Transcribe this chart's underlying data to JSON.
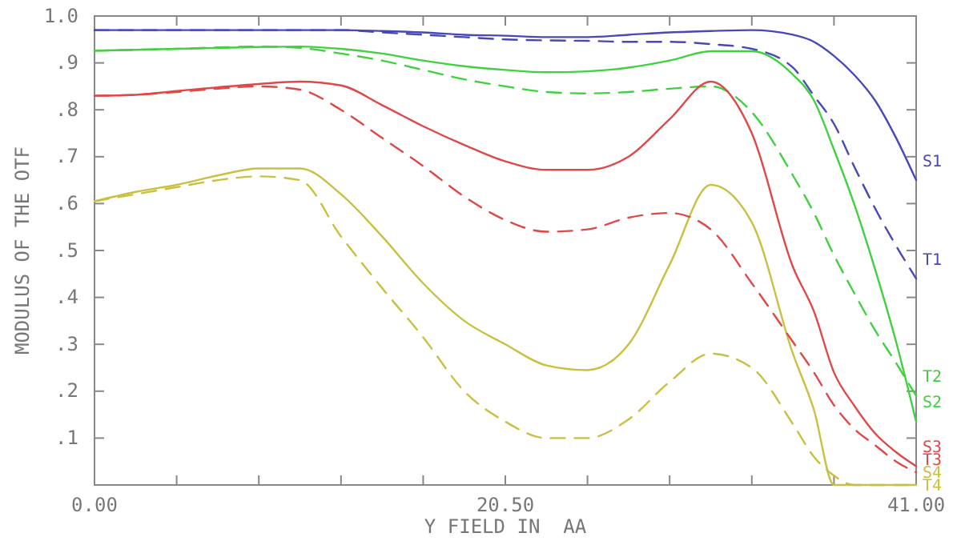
{
  "chart_data": {
    "type": "line",
    "xlabel": "Y FIELD IN  AA",
    "ylabel": "MODULUS OF THE OTF",
    "x": [
      0,
      2.05,
      4.1,
      6.15,
      8.2,
      10.25,
      12.3,
      14.35,
      16.4,
      18.45,
      20.5,
      22.55,
      24.6,
      26.65,
      28.7,
      30.75,
      32.8,
      34.85,
      35.9,
      36.9,
      37.9,
      38.95,
      40,
      41
    ],
    "xlim": [
      0,
      41
    ],
    "xticks": [
      {
        "value": 0,
        "label": "0.00"
      },
      {
        "value": 4.1,
        "label": null
      },
      {
        "value": 8.2,
        "label": null
      },
      {
        "value": 12.3,
        "label": null
      },
      {
        "value": 16.4,
        "label": null
      },
      {
        "value": 20.5,
        "label": "20.50"
      },
      {
        "value": 24.6,
        "label": null
      },
      {
        "value": 28.7,
        "label": null
      },
      {
        "value": 32.8,
        "label": null
      },
      {
        "value": 36.9,
        "label": null
      },
      {
        "value": 41,
        "label": "41.00"
      }
    ],
    "ylim": [
      0,
      1
    ],
    "yticks": [
      {
        "value": 0.1,
        "label": ".1"
      },
      {
        "value": 0.2,
        "label": ".2"
      },
      {
        "value": 0.3,
        "label": ".3"
      },
      {
        "value": 0.4,
        "label": ".4"
      },
      {
        "value": 0.5,
        "label": ".5"
      },
      {
        "value": 0.6,
        "label": ".6"
      },
      {
        "value": 0.7,
        "label": ".7"
      },
      {
        "value": 0.8,
        "label": ".8"
      },
      {
        "value": 0.9,
        "label": ".9"
      },
      {
        "value": 1,
        "label": "1.0"
      }
    ],
    "grid": false,
    "marker": "none",
    "series": [
      {
        "name": "S1",
        "color": "#4848b8",
        "line_style": "solid",
        "values": [
          0.97,
          0.97,
          0.97,
          0.97,
          0.97,
          0.97,
          0.97,
          0.968,
          0.965,
          0.96,
          0.958,
          0.955,
          0.955,
          0.96,
          0.965,
          0.968,
          0.97,
          0.96,
          0.945,
          0.915,
          0.875,
          0.82,
          0.74,
          0.65
        ]
      },
      {
        "name": "T1",
        "color": "#4848b8",
        "line_style": "dashed",
        "values": [
          0.97,
          0.97,
          0.97,
          0.97,
          0.97,
          0.97,
          0.97,
          0.965,
          0.96,
          0.955,
          0.95,
          0.948,
          0.947,
          0.945,
          0.945,
          0.94,
          0.93,
          0.89,
          0.83,
          0.77,
          0.68,
          0.59,
          0.51,
          0.44
        ]
      },
      {
        "name": "T2",
        "color": "#40d040",
        "line_style": "dashed",
        "values": [
          0.926,
          0.928,
          0.93,
          0.933,
          0.935,
          0.932,
          0.92,
          0.905,
          0.885,
          0.865,
          0.85,
          0.838,
          0.835,
          0.838,
          0.845,
          0.85,
          0.795,
          0.66,
          0.58,
          0.49,
          0.41,
          0.33,
          0.26,
          0.19
        ]
      },
      {
        "name": "S2",
        "color": "#40d040",
        "line_style": "solid",
        "values": [
          0.926,
          0.928,
          0.93,
          0.932,
          0.934,
          0.935,
          0.93,
          0.92,
          0.905,
          0.893,
          0.885,
          0.88,
          0.882,
          0.89,
          0.905,
          0.925,
          0.925,
          0.875,
          0.82,
          0.715,
          0.6,
          0.46,
          0.305,
          0.135
        ]
      },
      {
        "name": "S4",
        "color": "#c8c040",
        "line_style": "solid",
        "values": [
          0.605,
          0.625,
          0.64,
          0.66,
          0.675,
          0.675,
          0.62,
          0.53,
          0.43,
          0.35,
          0.3,
          0.255,
          0.245,
          0.3,
          0.47,
          0.64,
          0.56,
          0.28,
          0.16,
          0,
          0,
          0,
          0,
          0
        ]
      },
      {
        "name": "S3",
        "color": "#e04848",
        "line_style": "solid",
        "values": [
          0.83,
          0.832,
          0.84,
          0.848,
          0.855,
          0.86,
          0.852,
          0.81,
          0.765,
          0.725,
          0.69,
          0.672,
          0.672,
          0.7,
          0.78,
          0.86,
          0.75,
          0.465,
          0.37,
          0.24,
          0.17,
          0.11,
          0.07,
          0.04
        ]
      },
      {
        "name": "T3",
        "color": "#e04848",
        "line_style": "dashed",
        "values": [
          0.83,
          0.832,
          0.838,
          0.845,
          0.85,
          0.843,
          0.8,
          0.74,
          0.68,
          0.615,
          0.565,
          0.54,
          0.545,
          0.57,
          0.58,
          0.545,
          0.43,
          0.305,
          0.24,
          0.17,
          0.12,
          0.085,
          0.05,
          0.027
        ]
      },
      {
        "name": "T4",
        "color": "#c8c040",
        "line_style": "dashed",
        "values": [
          0.605,
          0.62,
          0.635,
          0.65,
          0.658,
          0.65,
          0.53,
          0.42,
          0.315,
          0.2,
          0.135,
          0.1,
          0.1,
          0.14,
          0.22,
          0.28,
          0.25,
          0.13,
          0.06,
          0.02,
          0,
          0,
          0,
          0
        ]
      }
    ]
  }
}
